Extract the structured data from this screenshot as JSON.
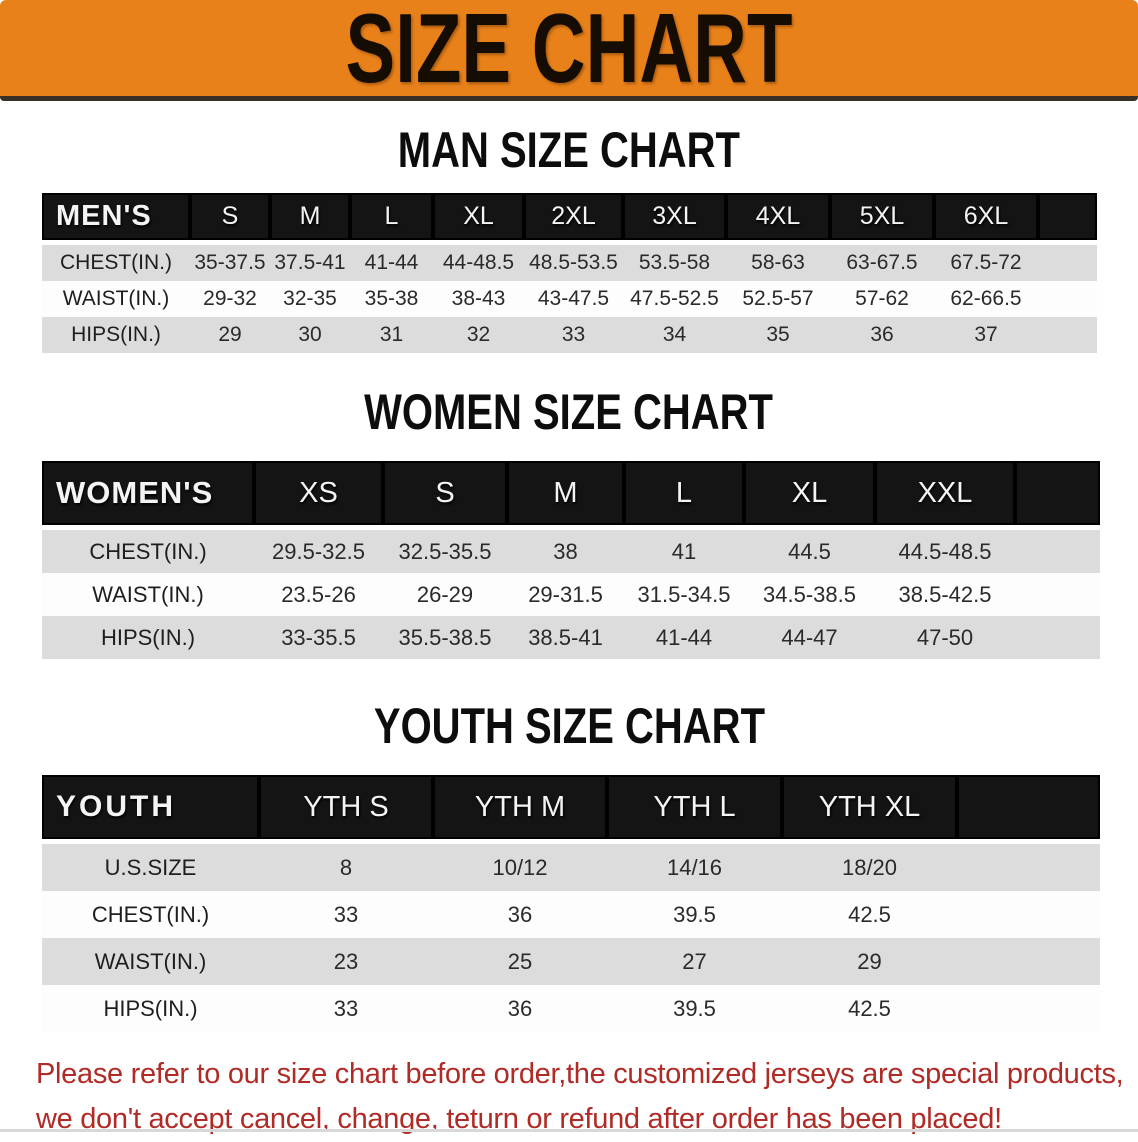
{
  "banner": {
    "title": "SIZE CHART"
  },
  "sections": [
    {
      "id": "men",
      "title": "MAN SIZE CHART",
      "header_label": "MEN'S",
      "columns": [
        "S",
        "M",
        "L",
        "XL",
        "2XL",
        "3XL",
        "4XL",
        "5XL",
        "6XL"
      ],
      "rows": [
        {
          "label": "CHEST(IN.)",
          "values": [
            "35-37.5",
            "37.5-41",
            "41-44",
            "44-48.5",
            "48.5-53.5",
            "53.5-58",
            "58-63",
            "63-67.5",
            "67.5-72"
          ]
        },
        {
          "label": "WAIST(IN.)",
          "values": [
            "29-32",
            "32-35",
            "35-38",
            "38-43",
            "43-47.5",
            "47.5-52.5",
            "52.5-57",
            "57-62",
            "62-66.5"
          ]
        },
        {
          "label": "HIPS(IN.)",
          "values": [
            "29",
            "30",
            "31",
            "32",
            "33",
            "34",
            "35",
            "36",
            "37"
          ]
        }
      ]
    },
    {
      "id": "women",
      "title": "WOMEN SIZE CHART",
      "header_label": "WOMEN'S",
      "columns": [
        "XS",
        "S",
        "M",
        "L",
        "XL",
        "XXL"
      ],
      "rows": [
        {
          "label": "CHEST(IN.)",
          "values": [
            "29.5-32.5",
            "32.5-35.5",
            "38",
            "41",
            "44.5",
            "44.5-48.5"
          ]
        },
        {
          "label": "WAIST(IN.)",
          "values": [
            "23.5-26",
            "26-29",
            "29-31.5",
            "31.5-34.5",
            "34.5-38.5",
            "38.5-42.5"
          ]
        },
        {
          "label": "HIPS(IN.)",
          "values": [
            "33-35.5",
            "35.5-38.5",
            "38.5-41",
            "41-44",
            "44-47",
            "47-50"
          ]
        }
      ]
    },
    {
      "id": "youth",
      "title": "YOUTH SIZE CHART",
      "header_label": "YOUTH",
      "columns": [
        "YTH S",
        "YTH M",
        "YTH L",
        "YTH XL"
      ],
      "rows": [
        {
          "label": "U.S.SIZE",
          "values": [
            "8",
            "10/12",
            "14/16",
            "18/20"
          ]
        },
        {
          "label": "CHEST(IN.)",
          "values": [
            "33",
            "36",
            "39.5",
            "42.5"
          ]
        },
        {
          "label": "WAIST(IN.)",
          "values": [
            "23",
            "25",
            "27",
            "29"
          ]
        },
        {
          "label": "HIPS(IN.)",
          "values": [
            "33",
            "36",
            "39.5",
            "42.5"
          ]
        }
      ]
    }
  ],
  "footer": {
    "lines": [
      "Please refer to our size chart before order,the customized jerseys are special products,",
      "we don't accept cancel, change, teturn or refund after order has been placed!"
    ]
  },
  "colors": {
    "banner_bg": "#e8811a",
    "bar_bg": "#141414",
    "row_alt_bg": "#dcdcdc",
    "notice_color": "#b02a26"
  }
}
